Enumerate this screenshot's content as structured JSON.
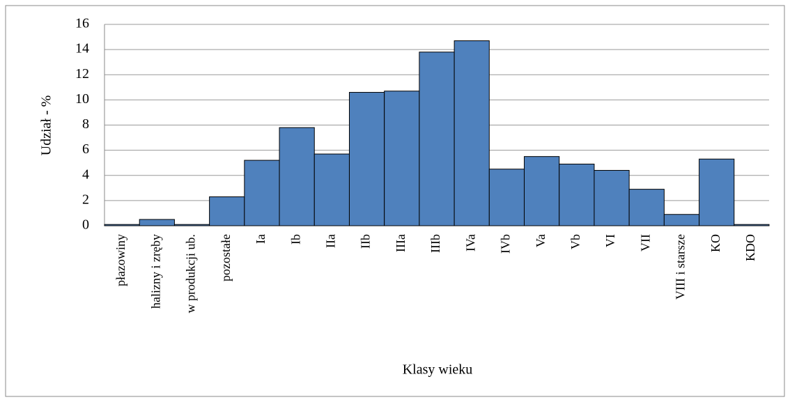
{
  "chart_data": {
    "type": "bar",
    "categories": [
      "płazowiny",
      "halizny i zręby",
      "w produkcji ub.",
      "pozostałe",
      "Ia",
      "Ib",
      "IIa",
      "IIb",
      "IIIa",
      "IIIb",
      "IVa",
      "IVb",
      "Va",
      "Vb",
      "VI",
      "VII",
      "VIII i starsze",
      "KO",
      "KDO"
    ],
    "values": [
      0.1,
      0.5,
      0.1,
      2.3,
      5.2,
      7.8,
      5.7,
      10.6,
      10.7,
      13.8,
      14.7,
      4.5,
      5.5,
      4.9,
      4.4,
      2.9,
      0.9,
      5.3,
      0.1
    ],
    "color": "#4f81bd",
    "ylim": [
      0,
      16
    ],
    "yticks": [
      0,
      2,
      4,
      6,
      8,
      10,
      12,
      14,
      16
    ],
    "grid": true,
    "ylabel": "Udział - %",
    "xlabel": "Klasy wieku"
  }
}
